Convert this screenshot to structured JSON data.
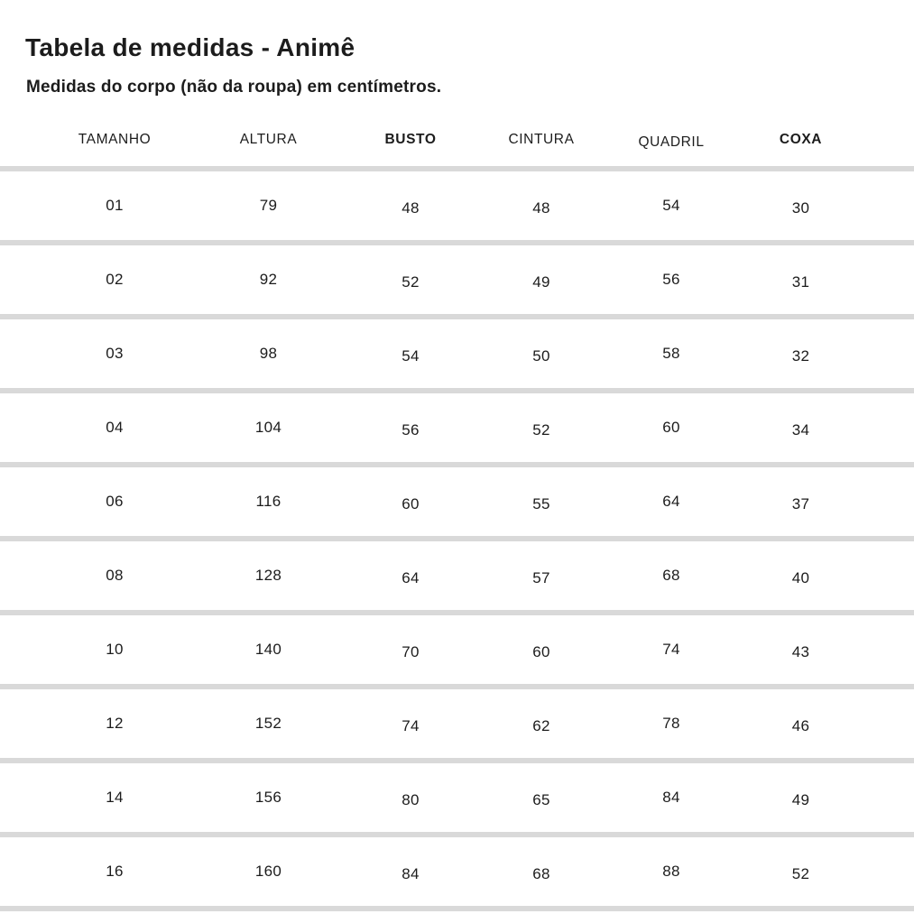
{
  "page": {
    "title": "Tabela de medidas - Animê",
    "subtitle": "Medidas do corpo (não da roupa) em centímetros."
  },
  "colors": {
    "text": "#1c1c1c",
    "divider": "#d9d9d9",
    "background": "#ffffff"
  },
  "chart_data": {
    "type": "table",
    "title": "Tabela de medidas - Animê",
    "subtitle": "Medidas do corpo (não da roupa) em centímetros.",
    "columns": [
      {
        "label": "TAMANHO",
        "bold": false
      },
      {
        "label": "ALTURA",
        "bold": false
      },
      {
        "label": "BUSTO",
        "bold": true
      },
      {
        "label": "CINTURA",
        "bold": false
      },
      {
        "label": "QUADRIL",
        "bold": false
      },
      {
        "label": "COXA",
        "bold": true
      }
    ],
    "rows": [
      [
        "01",
        "79",
        "48",
        "48",
        "54",
        "30"
      ],
      [
        "02",
        "92",
        "52",
        "49",
        "56",
        "31"
      ],
      [
        "03",
        "98",
        "54",
        "50",
        "58",
        "32"
      ],
      [
        "04",
        "104",
        "56",
        "52",
        "60",
        "34"
      ],
      [
        "06",
        "116",
        "60",
        "55",
        "64",
        "37"
      ],
      [
        "08",
        "128",
        "64",
        "57",
        "68",
        "40"
      ],
      [
        "10",
        "140",
        "70",
        "60",
        "74",
        "43"
      ],
      [
        "12",
        "152",
        "74",
        "62",
        "78",
        "46"
      ],
      [
        "14",
        "156",
        "80",
        "65",
        "84",
        "49"
      ],
      [
        "16",
        "160",
        "84",
        "68",
        "88",
        "52"
      ]
    ],
    "layout": {
      "grid": "horizontal-dividers-only",
      "divider_after_header": true,
      "divider_after_last_row": true
    }
  }
}
